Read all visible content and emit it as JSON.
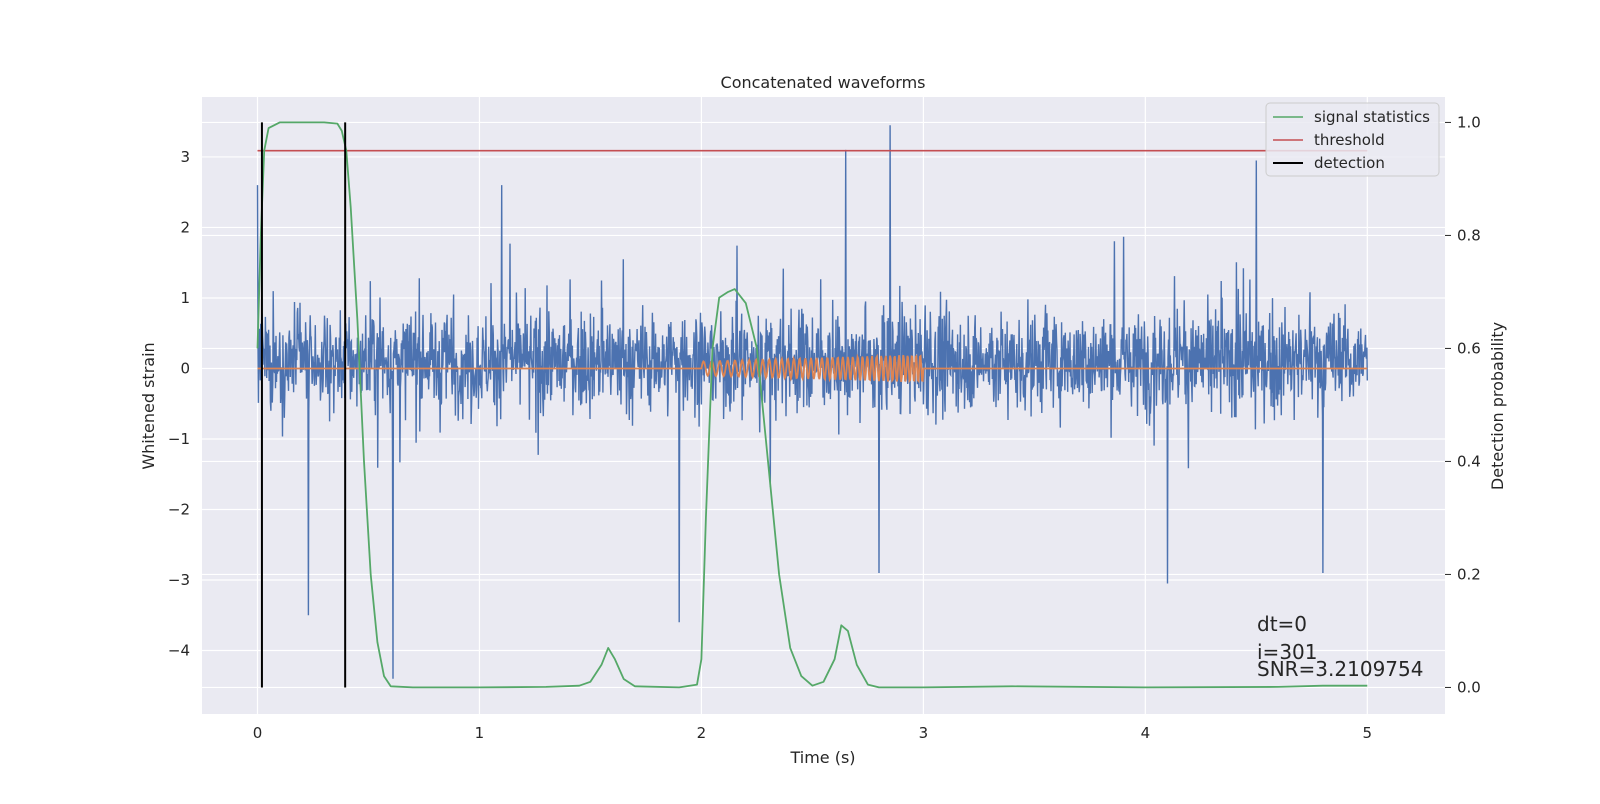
{
  "chart_data": {
    "type": "line",
    "title": "Concatenated waveforms",
    "xlabel": "Time (s)",
    "ylabel_left": "Whitened strain",
    "ylabel_right": "Detection probability",
    "xlim": [
      -0.25,
      5.35
    ],
    "ylim_left": [
      -4.9,
      3.85
    ],
    "ylim_right": [
      -0.047,
      1.045
    ],
    "grid": true,
    "legend_placement": "top-right",
    "x_ticks": [
      0,
      1,
      2,
      3,
      4,
      5
    ],
    "x_tick_labels": [
      "0",
      "1",
      "2",
      "3",
      "4",
      "5"
    ],
    "y_left_ticks": [
      -4,
      -3,
      -2,
      -1,
      0,
      1,
      2,
      3
    ],
    "y_left_tick_labels": [
      "−4",
      "−3",
      "−2",
      "−1",
      "0",
      "1",
      "2",
      "3"
    ],
    "y_right_ticks": [
      0.0,
      0.2,
      0.4,
      0.6,
      0.8,
      1.0
    ],
    "y_right_tick_labels": [
      "0.0",
      "0.2",
      "0.4",
      "0.6",
      "0.8",
      "1.0"
    ],
    "strain_noise": {
      "color": "#4c72b0",
      "axis": "left",
      "x_range": [
        0,
        5
      ],
      "typical_range": [
        -1.3,
        1.5
      ],
      "extremes": [
        {
          "x": 0.0,
          "y": 2.6
        },
        {
          "x": 0.23,
          "y": -3.5
        },
        {
          "x": 0.61,
          "y": -4.4
        },
        {
          "x": 1.1,
          "y": 2.6
        },
        {
          "x": 1.9,
          "y": -3.6
        },
        {
          "x": 2.65,
          "y": 3.1
        },
        {
          "x": 2.85,
          "y": 3.45
        },
        {
          "x": 2.8,
          "y": -2.9
        },
        {
          "x": 4.1,
          "y": -3.05
        },
        {
          "x": 4.5,
          "y": 2.95
        },
        {
          "x": 4.8,
          "y": -2.9
        }
      ]
    },
    "injected_waveform": {
      "color": "#dd8452",
      "axis": "left",
      "chirp_start": 2.0,
      "chirp_end": 3.0,
      "amp_start": 0.1,
      "amp_end": 0.2
    },
    "series": [
      {
        "name": "signal statistics",
        "color": "#55a868",
        "axis": "right",
        "x": [
          0.0,
          0.015,
          0.03,
          0.05,
          0.1,
          0.15,
          0.2,
          0.3,
          0.36,
          0.38,
          0.4,
          0.42,
          0.45,
          0.48,
          0.51,
          0.54,
          0.57,
          0.6,
          0.7,
          1.0,
          1.3,
          1.45,
          1.5,
          1.55,
          1.58,
          1.61,
          1.65,
          1.7,
          1.9,
          1.98,
          2.0,
          2.02,
          2.05,
          2.08,
          2.12,
          2.15,
          2.2,
          2.25,
          2.3,
          2.35,
          2.4,
          2.45,
          2.5,
          2.55,
          2.6,
          2.63,
          2.66,
          2.7,
          2.75,
          2.8,
          3.0,
          3.4,
          4.0,
          4.6,
          4.8,
          5.0
        ],
        "y": [
          0.6,
          0.8,
          0.95,
          0.99,
          1.0,
          1.0,
          1.0,
          1.0,
          0.998,
          0.985,
          0.95,
          0.85,
          0.65,
          0.4,
          0.2,
          0.08,
          0.02,
          0.002,
          0.0,
          0.0,
          0.001,
          0.003,
          0.01,
          0.04,
          0.07,
          0.05,
          0.015,
          0.002,
          0.0,
          0.005,
          0.05,
          0.3,
          0.6,
          0.69,
          0.7,
          0.705,
          0.68,
          0.6,
          0.4,
          0.2,
          0.07,
          0.02,
          0.003,
          0.01,
          0.05,
          0.11,
          0.1,
          0.04,
          0.005,
          0.0,
          0.0,
          0.002,
          0.0,
          0.001,
          0.003,
          0.003
        ]
      },
      {
        "name": "threshold",
        "color": "#c44e52",
        "axis": "right",
        "x": [
          0,
          5
        ],
        "y": [
          0.95,
          0.95
        ]
      },
      {
        "name": "detection",
        "color": "#000000",
        "axis": "right",
        "vlines": [
          0.02,
          0.395
        ],
        "ymin": 0.0,
        "ymax": 1.0
      }
    ],
    "annotations": [
      "dt=0",
      "i=301",
      "SNR=3.2109754"
    ]
  }
}
